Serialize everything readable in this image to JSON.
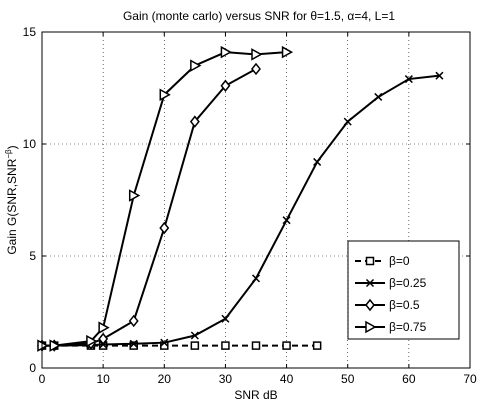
{
  "chart_data": {
    "type": "line",
    "title": "Gain (monte carlo) versus SNR for θ=1.5, α=4,  L=1",
    "xlabel": "SNR dB",
    "ylabel": "Gain G(SNR,SNR",
    "ylabel_sup": "−β",
    "ylabel_close": ")",
    "xlim": [
      0,
      70
    ],
    "ylim": [
      0,
      15
    ],
    "xticks": [
      "0",
      "10",
      "20",
      "30",
      "40",
      "50",
      "60",
      "70"
    ],
    "yticks": [
      "0",
      "5",
      "10",
      "15"
    ],
    "grid": true,
    "legend_position": "bottom-right",
    "series": [
      {
        "name": "β=0",
        "marker": "square",
        "dash": "dashed",
        "x": [
          0,
          2,
          8,
          10,
          15,
          20,
          25,
          30,
          35,
          40,
          45
        ],
        "y": [
          1.0,
          1.0,
          1.0,
          1.0,
          1.0,
          1.0,
          1.0,
          1.0,
          1.0,
          1.0,
          1.0
        ]
      },
      {
        "name": "β=0.25",
        "marker": "x",
        "dash": "solid",
        "x": [
          0,
          2,
          8,
          10,
          15,
          20,
          25,
          30,
          35,
          40,
          45,
          50,
          55,
          60,
          65
        ],
        "y": [
          1.0,
          1.0,
          1.02,
          1.05,
          1.08,
          1.13,
          1.45,
          2.2,
          4.0,
          6.6,
          9.2,
          11.0,
          12.1,
          12.9,
          13.05
        ]
      },
      {
        "name": "β=0.5",
        "marker": "diamond",
        "dash": "solid",
        "x": [
          0,
          2,
          8,
          10,
          15,
          20,
          25,
          30,
          35
        ],
        "y": [
          1.0,
          1.0,
          1.1,
          1.3,
          2.1,
          6.25,
          11.0,
          12.6,
          13.35
        ]
      },
      {
        "name": "β=0.75",
        "marker": "triangle-right",
        "dash": "solid",
        "x": [
          0,
          2,
          8,
          10,
          15,
          20,
          25,
          30,
          35,
          40
        ],
        "y": [
          1.0,
          1.0,
          1.2,
          1.8,
          7.7,
          12.2,
          13.5,
          14.1,
          14.0,
          14.1
        ]
      }
    ]
  }
}
